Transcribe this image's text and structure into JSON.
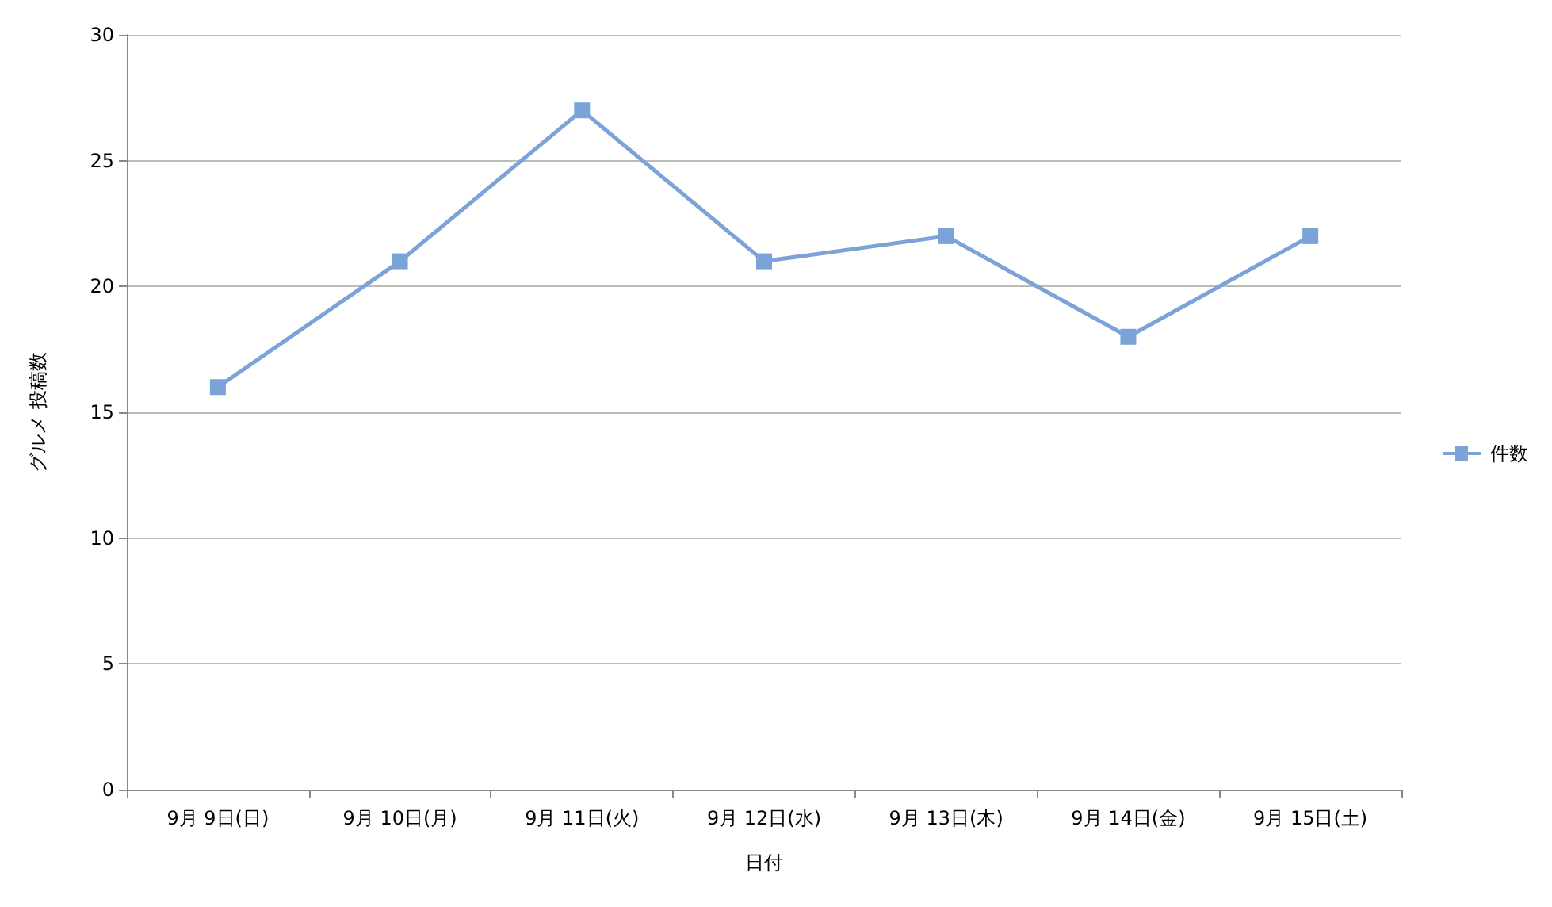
{
  "chart_data": {
    "type": "line",
    "xlabel": "日付",
    "ylabel": "グルメ 投稿数",
    "categories": [
      "9月 9日(日)",
      "9月 10日(月)",
      "9月 11日(火)",
      "9月 12日(水)",
      "9月 13日(木)",
      "9月 14日(金)",
      "9月 15日(土)"
    ],
    "series": [
      {
        "name": "件数",
        "color": "#7ba3d8",
        "values": [
          16,
          21,
          27,
          21,
          22,
          18,
          22
        ]
      }
    ],
    "ylim": [
      0,
      30
    ],
    "yticks": [
      0,
      5,
      10,
      15,
      20,
      25,
      30
    ],
    "grid": "y",
    "legend": "right",
    "marker": "square",
    "line_style": "solid"
  }
}
